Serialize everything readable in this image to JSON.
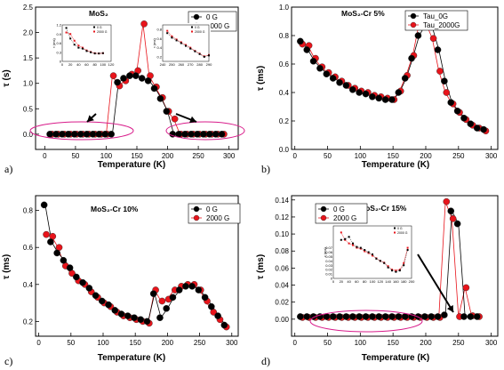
{
  "panel_labels": [
    "a)",
    "b)",
    "c)",
    "d)"
  ],
  "chart_data": [
    {
      "type": "line",
      "title": "MoS₂",
      "xlabel": "Temperature (K)",
      "ylabel": "τ (s)",
      "xlim": [
        -15,
        315
      ],
      "ylim": [
        -0.3,
        2.5
      ],
      "xticks": [
        0,
        50,
        100,
        150,
        200,
        250,
        300
      ],
      "yticks": [
        0.0,
        0.5,
        1.0,
        1.5,
        2.0,
        2.5
      ],
      "legend": "top-right",
      "series": [
        {
          "name": "0 G",
          "color": "#000000",
          "x": [
            10,
            20,
            30,
            40,
            50,
            60,
            70,
            80,
            90,
            100,
            110,
            120,
            130,
            140,
            150,
            160,
            170,
            180,
            190,
            200,
            210,
            220,
            230,
            240,
            250,
            260,
            270,
            280,
            290
          ],
          "y": [
            0,
            0,
            0,
            0,
            0,
            0,
            0,
            0,
            0,
            0,
            0,
            1.02,
            1.1,
            1.15,
            1.15,
            1.1,
            1.05,
            0.9,
            0.7,
            0.45,
            0,
            0,
            0,
            0,
            0,
            0,
            0,
            0,
            0
          ]
        },
        {
          "name": "2000 G",
          "color": "#e8141b",
          "x": [
            10,
            20,
            30,
            40,
            50,
            60,
            70,
            80,
            90,
            100,
            110,
            120,
            130,
            140,
            150,
            160,
            170,
            180,
            190,
            200,
            210,
            220,
            230,
            240,
            250,
            260,
            270,
            280,
            290
          ],
          "y": [
            0,
            0,
            0,
            0,
            0,
            0,
            0,
            0,
            0,
            0,
            1.15,
            0.95,
            1.05,
            1.18,
            1.25,
            2.17,
            1.15,
            0.93,
            0.72,
            0.45,
            0.3,
            0,
            0,
            0,
            0,
            0,
            0,
            0,
            0
          ]
        }
      ],
      "insets": [
        {
          "xlim": [
            0,
            120
          ],
          "ylim": [
            0,
            1.2
          ],
          "xticks": [
            0,
            20,
            40,
            60,
            80,
            100,
            120
          ],
          "yticks": [
            0.0,
            0.3,
            0.6,
            0.9,
            1.2
          ],
          "ylabel": "τ (ms)",
          "legend": [
            "0 G",
            "2000 G"
          ],
          "series": [
            {
              "name": "0 G",
              "x": [
                10,
                20,
                30,
                40,
                50,
                60,
                70,
                80,
                90,
                100
              ],
              "y": [
                1.1,
                0.75,
                0.55,
                0.45,
                0.42,
                0.34,
                0.3,
                0.26,
                0.26,
                0.27
              ]
            },
            {
              "name": "2000 G",
              "x": [
                10,
                20,
                30,
                40,
                50,
                60,
                70,
                80,
                90,
                100
              ],
              "y": [
                0.95,
                0.9,
                0.68,
                0.52,
                0.45,
                0.36,
                0.31,
                0.27,
                0.26,
                0.27
              ]
            }
          ]
        },
        {
          "xlim": [
            240,
            290
          ],
          "ylim": [
            0.1,
            0.9
          ],
          "xticks": [
            240,
            250,
            260,
            270,
            280,
            290
          ],
          "yticks": [
            0.2,
            0.4,
            0.6,
            0.8
          ],
          "ylabel": "τ (ms)",
          "legend": [
            "0 G",
            "2000 G"
          ],
          "series": [
            {
              "name": "0 G",
              "x": [
                245,
                250,
                255,
                260,
                265,
                270,
                275,
                280,
                285,
                290
              ],
              "y": [
                0.72,
                0.62,
                0.56,
                0.5,
                0.44,
                0.38,
                0.32,
                0.26,
                0.2,
                0.23
              ]
            },
            {
              "name": "2000 G",
              "x": [
                245,
                250,
                255,
                260,
                265,
                270,
                275,
                280,
                285,
                290
              ],
              "y": [
                0.77,
                0.65,
                0.58,
                0.52,
                0.46,
                0.4,
                0.33,
                0.27,
                0.21,
                0.24
              ]
            }
          ]
        }
      ]
    },
    {
      "type": "line",
      "title": "MoS₂-Cr 5%",
      "xlabel": "Temperature (K)",
      "ylabel": "τ (ms)",
      "xlim": [
        -5,
        310
      ],
      "ylim": [
        0.0,
        1.0
      ],
      "xticks": [
        0,
        50,
        100,
        150,
        200,
        250,
        300
      ],
      "yticks": [
        0.0,
        0.2,
        0.4,
        0.6,
        0.8,
        1.0
      ],
      "legend": "top-right",
      "series": [
        {
          "name": "Tau_0G",
          "color": "#000000",
          "x": [
            10,
            20,
            30,
            40,
            50,
            60,
            70,
            80,
            90,
            100,
            110,
            120,
            130,
            140,
            150,
            160,
            170,
            180,
            190,
            200,
            210,
            220,
            230,
            240,
            250,
            260,
            270,
            280,
            290
          ],
          "y": [
            0.76,
            0.7,
            0.62,
            0.57,
            0.53,
            0.5,
            0.47,
            0.45,
            0.42,
            0.4,
            0.39,
            0.37,
            0.36,
            0.35,
            0.35,
            0.4,
            0.5,
            0.64,
            0.8,
            0.88,
            0.86,
            0.7,
            0.48,
            0.33,
            0.27,
            0.22,
            0.18,
            0.15,
            0.14
          ]
        },
        {
          "name": "Tau_2000G",
          "color": "#e8141b",
          "x": [
            10,
            20,
            30,
            40,
            50,
            60,
            70,
            80,
            90,
            100,
            110,
            120,
            130,
            140,
            150,
            160,
            170,
            180,
            190,
            200,
            210,
            220,
            230,
            240,
            250,
            260,
            270,
            280,
            290
          ],
          "y": [
            0.74,
            0.73,
            0.64,
            0.58,
            0.54,
            0.51,
            0.48,
            0.45,
            0.43,
            0.41,
            0.4,
            0.38,
            0.37,
            0.36,
            0.35,
            0.41,
            0.52,
            0.66,
            0.89,
            0.89,
            0.78,
            0.55,
            0.4,
            0.32,
            0.26,
            0.21,
            0.17,
            0.15,
            0.13
          ]
        }
      ]
    },
    {
      "type": "line",
      "title": "MoS₂-Cr 10%",
      "xlabel": "Temperature (K)",
      "ylabel": "τ (ms)",
      "xlim": [
        -5,
        310
      ],
      "ylim": [
        0.12,
        0.88
      ],
      "xticks": [
        0,
        50,
        100,
        150,
        200,
        250,
        300
      ],
      "yticks": [
        0.2,
        0.4,
        0.6,
        0.8
      ],
      "legend": "top-right",
      "series": [
        {
          "name": "0 G",
          "color": "#000000",
          "x": [
            10,
            20,
            30,
            40,
            50,
            60,
            70,
            80,
            90,
            100,
            110,
            120,
            130,
            140,
            150,
            160,
            170,
            180,
            190,
            200,
            210,
            220,
            230,
            240,
            250,
            260,
            270,
            280,
            290
          ],
          "y": [
            0.83,
            0.63,
            0.57,
            0.53,
            0.49,
            0.44,
            0.41,
            0.38,
            0.34,
            0.31,
            0.29,
            0.26,
            0.24,
            0.23,
            0.22,
            0.21,
            0.2,
            0.35,
            0.22,
            0.27,
            0.33,
            0.37,
            0.39,
            0.39,
            0.37,
            0.33,
            0.28,
            0.23,
            0.18
          ]
        },
        {
          "name": "2000 G",
          "color": "#e8141b",
          "x": [
            10,
            20,
            30,
            40,
            50,
            60,
            70,
            80,
            90,
            100,
            110,
            120,
            130,
            140,
            150,
            160,
            170,
            180,
            190,
            200,
            210,
            220,
            230,
            240,
            250,
            260,
            270,
            280,
            290
          ],
          "y": [
            0.67,
            0.66,
            0.6,
            0.5,
            0.46,
            0.42,
            0.4,
            0.36,
            0.33,
            0.3,
            0.28,
            0.25,
            0.23,
            0.22,
            0.21,
            0.2,
            0.19,
            0.37,
            0.31,
            0.32,
            0.37,
            0.39,
            0.4,
            0.4,
            0.37,
            0.31,
            0.25,
            0.21,
            0.17
          ]
        }
      ]
    },
    {
      "type": "line",
      "title": "MoS₂-Cr 15%",
      "xlabel": "Temperature (K)",
      "ylabel": "τ (ms)",
      "xlim": [
        -5,
        310
      ],
      "ylim": [
        -0.02,
        0.145
      ],
      "xticks": [
        0,
        50,
        100,
        150,
        200,
        250,
        300
      ],
      "yticks": [
        0.0,
        0.02,
        0.04,
        0.06,
        0.08,
        0.1,
        0.12,
        0.14
      ],
      "legend": "top-left",
      "series": [
        {
          "name": "0 G",
          "color": "#000000",
          "x": [
            10,
            20,
            30,
            40,
            50,
            60,
            70,
            80,
            90,
            100,
            110,
            120,
            130,
            140,
            150,
            160,
            170,
            180,
            190,
            200,
            210,
            220,
            230,
            240,
            250,
            260,
            270,
            280
          ],
          "y": [
            0.003,
            0.003,
            0.003,
            0.003,
            0.003,
            0.003,
            0.003,
            0.003,
            0.003,
            0.003,
            0.003,
            0.003,
            0.003,
            0.003,
            0.003,
            0.003,
            0.003,
            0.003,
            0.003,
            0.003,
            0.003,
            0.003,
            0.005,
            0.127,
            0.112,
            0.003,
            0.003,
            0.003
          ]
        },
        {
          "name": "2000 G",
          "color": "#e8141b",
          "x": [
            10,
            20,
            30,
            40,
            50,
            60,
            70,
            80,
            90,
            100,
            110,
            120,
            130,
            140,
            150,
            160,
            170,
            180,
            190,
            200,
            210,
            220,
            230,
            240,
            250,
            260,
            270,
            280
          ],
          "y": [
            0.002,
            0.002,
            0.002,
            0.002,
            0.002,
            0.002,
            0.002,
            0.002,
            0.002,
            0.002,
            0.002,
            0.002,
            0.002,
            0.002,
            0.002,
            0.002,
            0.002,
            0.002,
            0.002,
            0.002,
            0.002,
            0.002,
            0.138,
            0.118,
            0.003,
            0.037,
            0.004,
            0.003
          ]
        }
      ],
      "insets": [
        {
          "xlim": [
            0,
            200
          ],
          "ylim": [
            0.0,
            0.12
          ],
          "xticks": [
            0,
            20,
            40,
            60,
            80,
            100,
            120,
            140,
            160,
            180,
            200
          ],
          "yticks": [
            0.0,
            0.01,
            0.02,
            0.03,
            0.04,
            0.05,
            0.06,
            0.07
          ],
          "ylabel": "τ (ms)",
          "legend": [
            "0 G",
            "2000 G"
          ],
          "series": [
            {
              "name": "0 G",
              "x": [
                20,
                30,
                40,
                50,
                60,
                70,
                80,
                90,
                100,
                110,
                120,
                130,
                140,
                150,
                160,
                170,
                180,
                190
              ],
              "y": [
                0.088,
                0.09,
                0.095,
                0.08,
                0.072,
                0.07,
                0.065,
                0.06,
                0.055,
                0.045,
                0.04,
                0.035,
                0.025,
                0.018,
                0.015,
                0.018,
                0.03,
                0.065
              ]
            },
            {
              "name": "2000 G",
              "x": [
                20,
                30,
                40,
                50,
                60,
                70,
                80,
                90,
                100,
                110,
                120,
                130,
                140,
                150,
                160,
                170,
                180,
                190
              ],
              "y": [
                0.105,
                0.088,
                0.08,
                0.076,
                0.07,
                0.068,
                0.062,
                0.058,
                0.052,
                0.046,
                0.04,
                0.036,
                0.028,
                0.02,
                0.018,
                0.02,
                0.035,
                0.07
              ]
            }
          ]
        }
      ]
    }
  ]
}
